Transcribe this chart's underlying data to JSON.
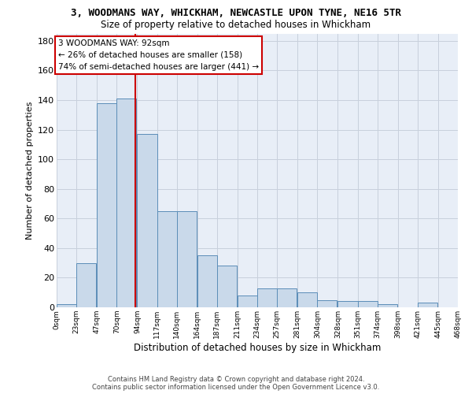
{
  "title": "3, WOODMANS WAY, WHICKHAM, NEWCASTLE UPON TYNE, NE16 5TR",
  "subtitle": "Size of property relative to detached houses in Whickham",
  "xlabel": "Distribution of detached houses by size in Whickham",
  "ylabel": "Number of detached properties",
  "footer_line1": "Contains HM Land Registry data © Crown copyright and database right 2024.",
  "footer_line2": "Contains public sector information licensed under the Open Government Licence v3.0.",
  "bar_color": "#c9d9ea",
  "bar_edge_color": "#5b8db8",
  "grid_color": "#c8d0dc",
  "background_color": "#e8eef7",
  "property_line_color": "#cc0000",
  "property_size": 92,
  "annotation_line1": "3 WOODMANS WAY: 92sqm",
  "annotation_line2": "← 26% of detached houses are smaller (158)",
  "annotation_line3": "74% of semi-detached houses are larger (441) →",
  "bin_edges": [
    0,
    23,
    47,
    70,
    94,
    117,
    140,
    164,
    187,
    211,
    234,
    257,
    281,
    304,
    328,
    351,
    374,
    398,
    421,
    445,
    468
  ],
  "bin_labels": [
    "0sqm",
    "23sqm",
    "47sqm",
    "70sqm",
    "94sqm",
    "117sqm",
    "140sqm",
    "164sqm",
    "187sqm",
    "211sqm",
    "234sqm",
    "257sqm",
    "281sqm",
    "304sqm",
    "328sqm",
    "351sqm",
    "374sqm",
    "398sqm",
    "421sqm",
    "445sqm",
    "468sqm"
  ],
  "counts": [
    2,
    30,
    138,
    141,
    117,
    65,
    65,
    35,
    28,
    8,
    13,
    13,
    10,
    5,
    4,
    4,
    2,
    0,
    3,
    0
  ],
  "ylim": [
    0,
    185
  ],
  "yticks": [
    0,
    20,
    40,
    60,
    80,
    100,
    120,
    140,
    160,
    180
  ]
}
